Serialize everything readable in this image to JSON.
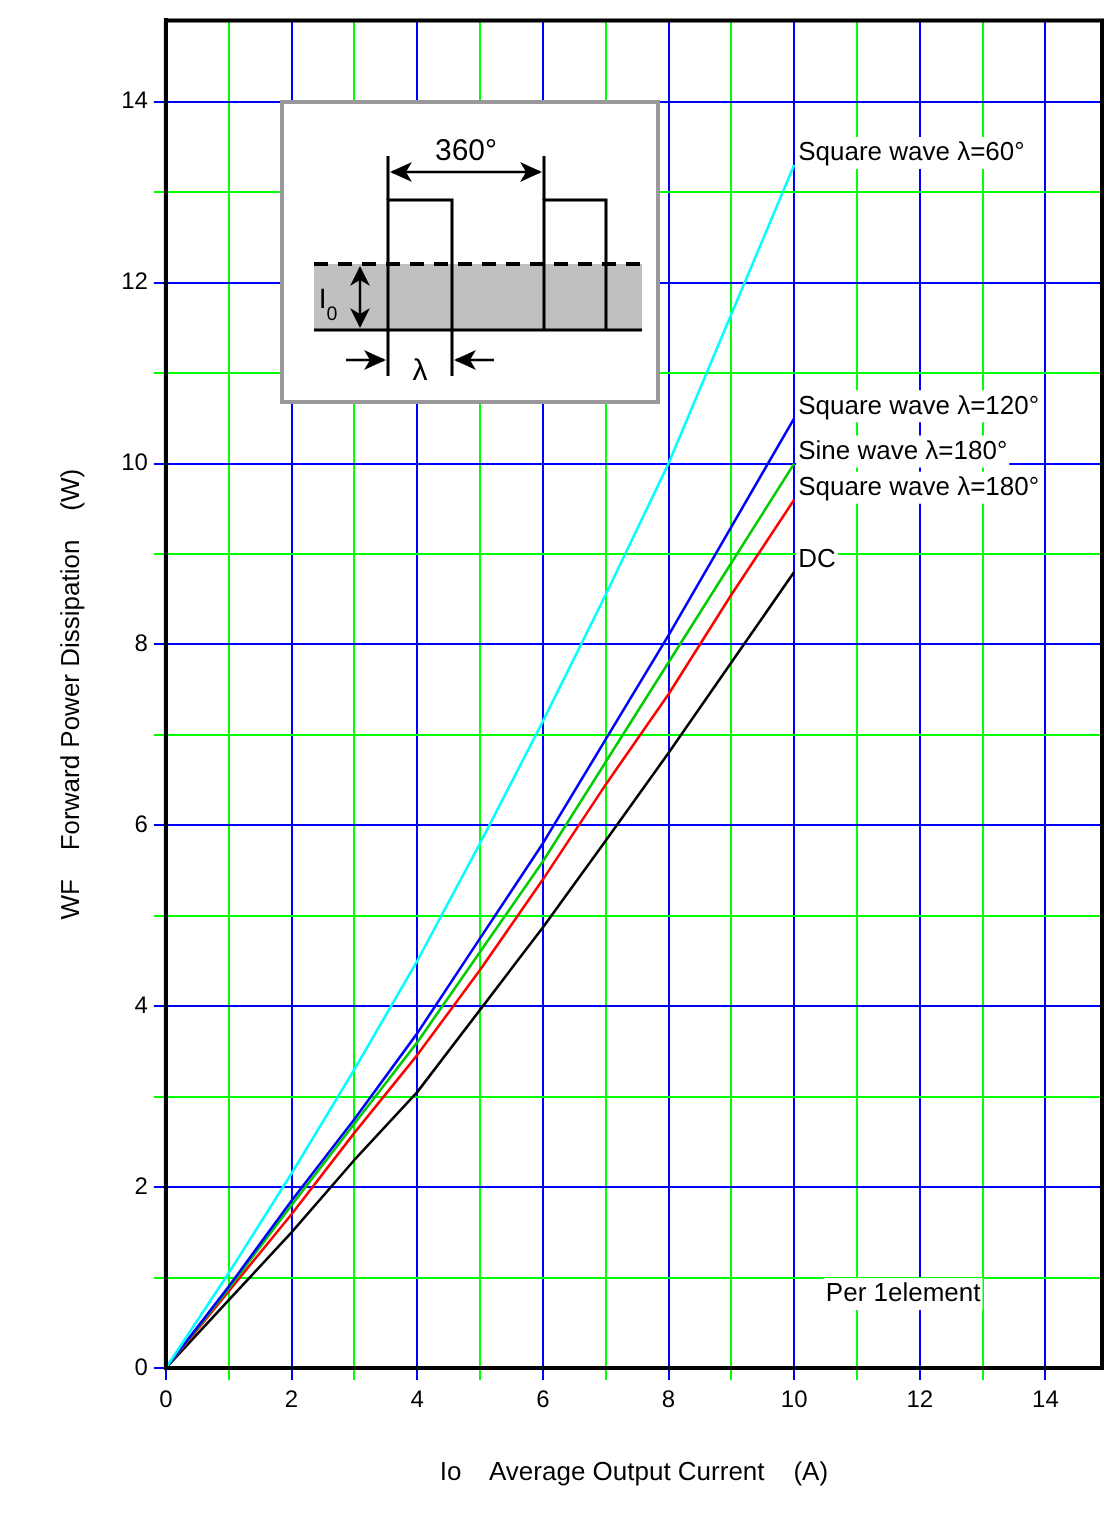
{
  "chart_data": {
    "type": "line",
    "xlabel": "Io    Average Output Current    (A)",
    "ylabel": "WF    Forward Power Dissipation    (W)",
    "x": [
      0,
      1,
      2,
      3,
      4,
      5,
      6,
      7,
      8,
      9,
      10
    ],
    "series": [
      {
        "name": "Square wave λ=60°",
        "color": "#00ffff",
        "values": [
          0,
          1.05,
          2.15,
          3.3,
          4.5,
          5.8,
          7.15,
          8.55,
          10.0,
          11.65,
          13.3
        ]
      },
      {
        "name": "Square wave λ=120°",
        "color": "#0000ff",
        "values": [
          0,
          0.9,
          1.85,
          2.75,
          3.7,
          4.75,
          5.8,
          6.95,
          8.1,
          9.3,
          10.5
        ]
      },
      {
        "name": "Sine wave λ=180°",
        "color": "#00cc00",
        "values": [
          0,
          0.88,
          1.8,
          2.7,
          3.6,
          4.6,
          5.6,
          6.7,
          7.8,
          8.9,
          10.0
        ]
      },
      {
        "name": "Square wave λ=180°",
        "color": "#ff0000",
        "values": [
          0,
          0.85,
          1.7,
          2.6,
          3.46,
          4.4,
          5.4,
          6.45,
          7.45,
          8.55,
          9.6
        ]
      },
      {
        "name": "DC",
        "color": "#000000",
        "values": [
          0,
          0.75,
          1.5,
          2.3,
          3.05,
          3.96,
          4.87,
          5.83,
          6.8,
          7.8,
          8.8
        ]
      }
    ],
    "xlim": [
      0,
      14.9
    ],
    "ylim": [
      0,
      14.9
    ],
    "xticks": [
      0,
      {
        "value": 1,
        "label": null
      },
      2,
      {
        "value": 3,
        "label": null
      },
      4,
      {
        "value": 5,
        "label": null
      },
      6,
      {
        "value": 7,
        "label": null
      },
      8,
      {
        "value": 9,
        "label": null
      },
      10,
      {
        "value": 11,
        "label": null
      },
      12,
      {
        "value": 13,
        "label": null
      },
      14
    ],
    "yticks": [
      0,
      {
        "value": 1,
        "label": null
      },
      2,
      {
        "value": 3,
        "label": null
      },
      4,
      {
        "value": 5,
        "label": null
      },
      6,
      {
        "value": 7,
        "label": null
      },
      8,
      {
        "value": 9,
        "label": null
      },
      10,
      {
        "value": 11,
        "label": null
      },
      12,
      {
        "value": 13,
        "label": null
      },
      14
    ],
    "grid": true,
    "legend": false,
    "marker": "none",
    "line_style": "solid",
    "annotations": [
      "360°",
      "I$_{0}$",
      "λ",
      "Per 1element"
    ]
  }
}
